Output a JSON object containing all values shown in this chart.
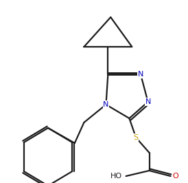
{
  "bg_color": "#ffffff",
  "line_color": "#1c1c1c",
  "atom_colors": {
    "N": "#0000bb",
    "S": "#c8a000",
    "O": "#cc0000",
    "C": "#1c1c1c"
  },
  "font_size_atom": 8.0,
  "line_width": 1.6,
  "figsize": [
    2.74,
    2.66
  ],
  "dpi": 100
}
